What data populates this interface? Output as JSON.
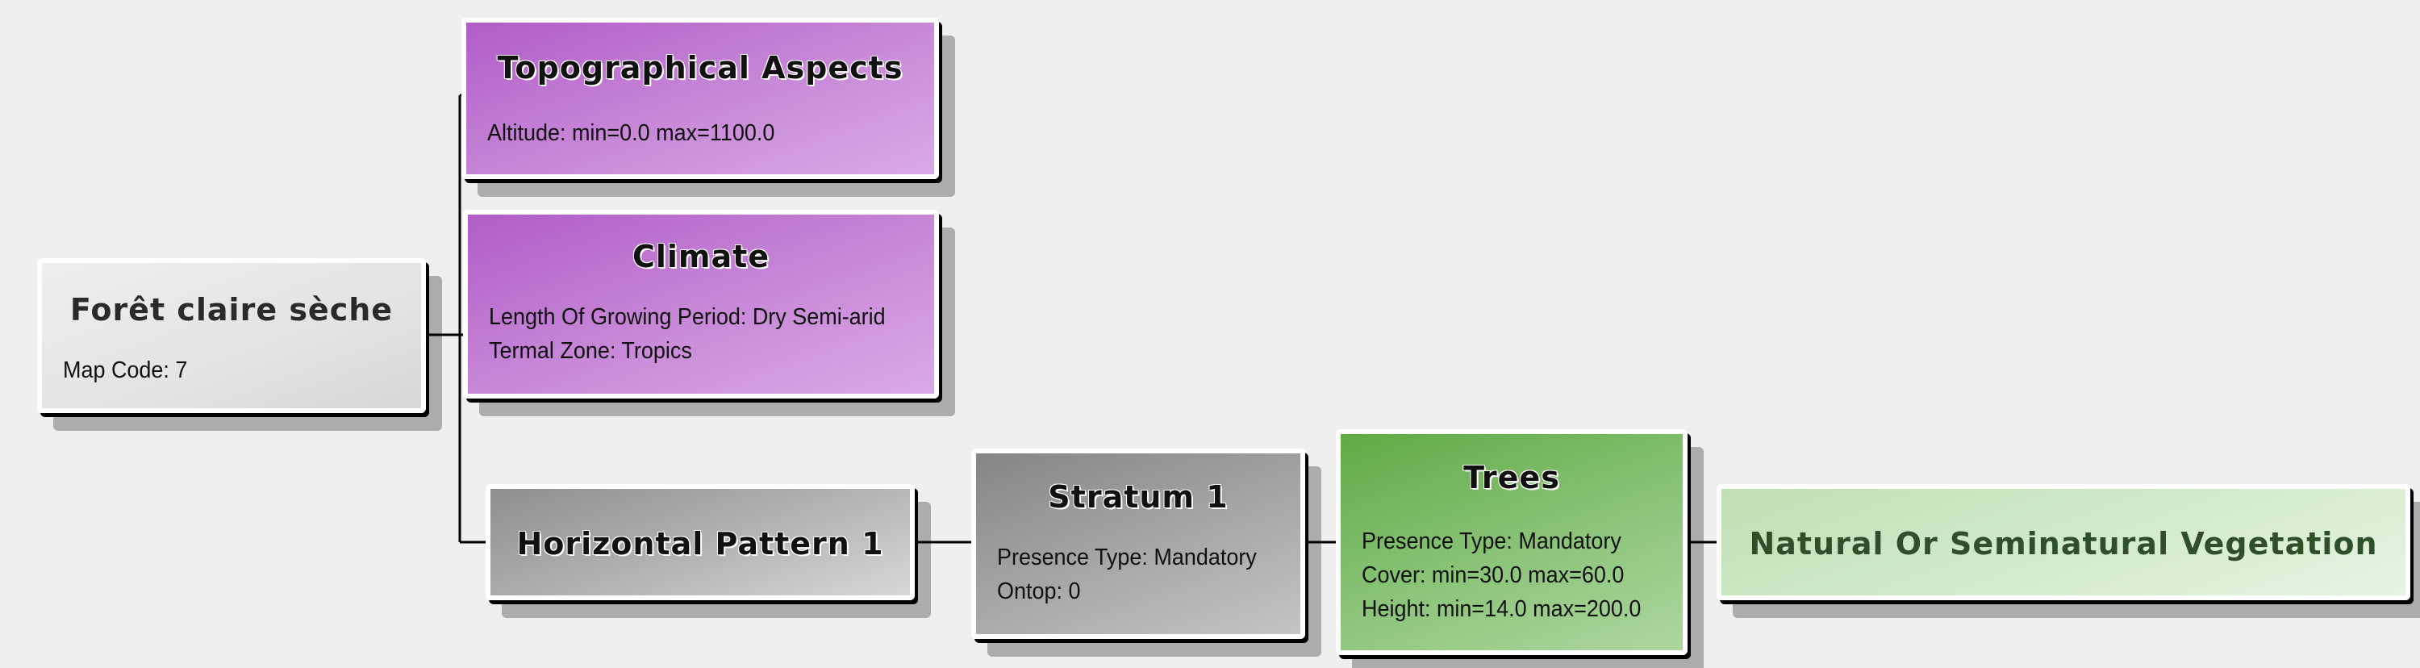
{
  "nodes": {
    "root": {
      "title": "Forêt claire sèche",
      "lines": [
        "Map Code: 7"
      ]
    },
    "topo": {
      "title": "Topographical Aspects",
      "lines": [
        "Altitude: min=0.0 max=1100.0"
      ]
    },
    "climate": {
      "title": "Climate",
      "lines": [
        "Length Of Growing Period: Dry Semi-arid",
        "Termal Zone: Tropics"
      ]
    },
    "horizontal": {
      "title": "Horizontal Pattern 1",
      "lines": []
    },
    "stratum": {
      "title": "Stratum 1",
      "lines": [
        "Presence Type: Mandatory",
        "Ontop: 0"
      ]
    },
    "trees": {
      "title": "Trees",
      "lines": [
        "Presence Type: Mandatory",
        "Cover: min=30.0 max=60.0",
        "Height: min=14.0 max=200.0"
      ]
    },
    "vegetation": {
      "title": "Natural Or Seminatural Vegetation",
      "lines": []
    }
  },
  "colors": {
    "purple": "#b15cc8",
    "grey": "#a8a8a8",
    "green": "#5faa45",
    "pale_green": "#d3ebcb",
    "connector": "#000000"
  }
}
